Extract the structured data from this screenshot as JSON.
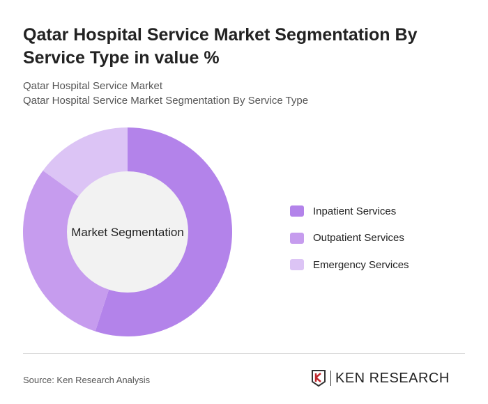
{
  "title": "Qatar Hospital Service Market Segmentation By Service Type in value %",
  "subtitle1": "Qatar Hospital Service Market",
  "subtitle2": "Qatar Hospital Service Market Segmentation By Service Type",
  "source": "Source: Ken Research Analysis",
  "logo": "KEN RESEARCH",
  "chart_data": {
    "type": "pie",
    "donut": true,
    "center_label": "Market Segmentation",
    "categories": [
      "Inpatient Services",
      "Outpatient Services",
      "Emergency Services"
    ],
    "values": [
      55,
      30,
      15
    ],
    "colors": [
      "#b383ea",
      "#c69cee",
      "#dcc4f5"
    ],
    "legend_position": "right"
  }
}
